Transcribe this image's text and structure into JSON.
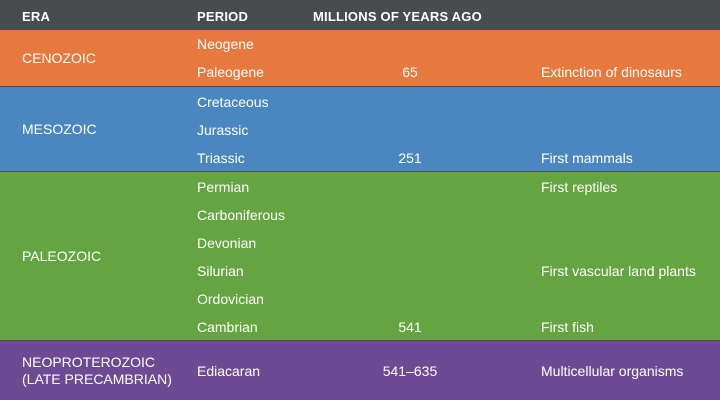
{
  "header": {
    "era": "ERA",
    "period": "PERIOD",
    "mya": "MILLIONS OF YEARS AGO"
  },
  "eras": [
    {
      "name": "CENOZOIC",
      "color": "#e8793e",
      "periods": [
        {
          "period": "Neogene",
          "mya": "",
          "event": ""
        },
        {
          "period": "Paleogene",
          "mya": "65",
          "event": "Extinction of dinosaurs"
        }
      ]
    },
    {
      "name": "MESOZOIC",
      "color": "#4a86c0",
      "periods": [
        {
          "period": "Cretaceous",
          "mya": "",
          "event": ""
        },
        {
          "period": "Jurassic",
          "mya": "",
          "event": ""
        },
        {
          "period": "Triassic",
          "mya": "251",
          "event": "First mammals"
        }
      ]
    },
    {
      "name": "PALEOZOIC",
      "color": "#64a441",
      "periods": [
        {
          "period": "Permian",
          "mya": "",
          "event": "First reptiles"
        },
        {
          "period": "Carboniferous",
          "mya": "",
          "event": ""
        },
        {
          "period": "Devonian",
          "mya": "",
          "event": ""
        },
        {
          "period": "Silurian",
          "mya": "",
          "event": "First vascular land plants"
        },
        {
          "period": "Ordovician",
          "mya": "",
          "event": ""
        },
        {
          "period": "Cambrian",
          "mya": "541",
          "event": "First fish"
        }
      ]
    },
    {
      "name": "NEOPROTEROZOIC (LATE PRECAMBRIAN)",
      "name_lines": [
        "NEOPROTEROZOIC",
        "(LATE PRECAMBRIAN)"
      ],
      "color": "#6e4a95",
      "periods": [
        {
          "period": "Ediacaran",
          "mya": "541–635",
          "event": "Multicellular organisms"
        }
      ]
    }
  ]
}
